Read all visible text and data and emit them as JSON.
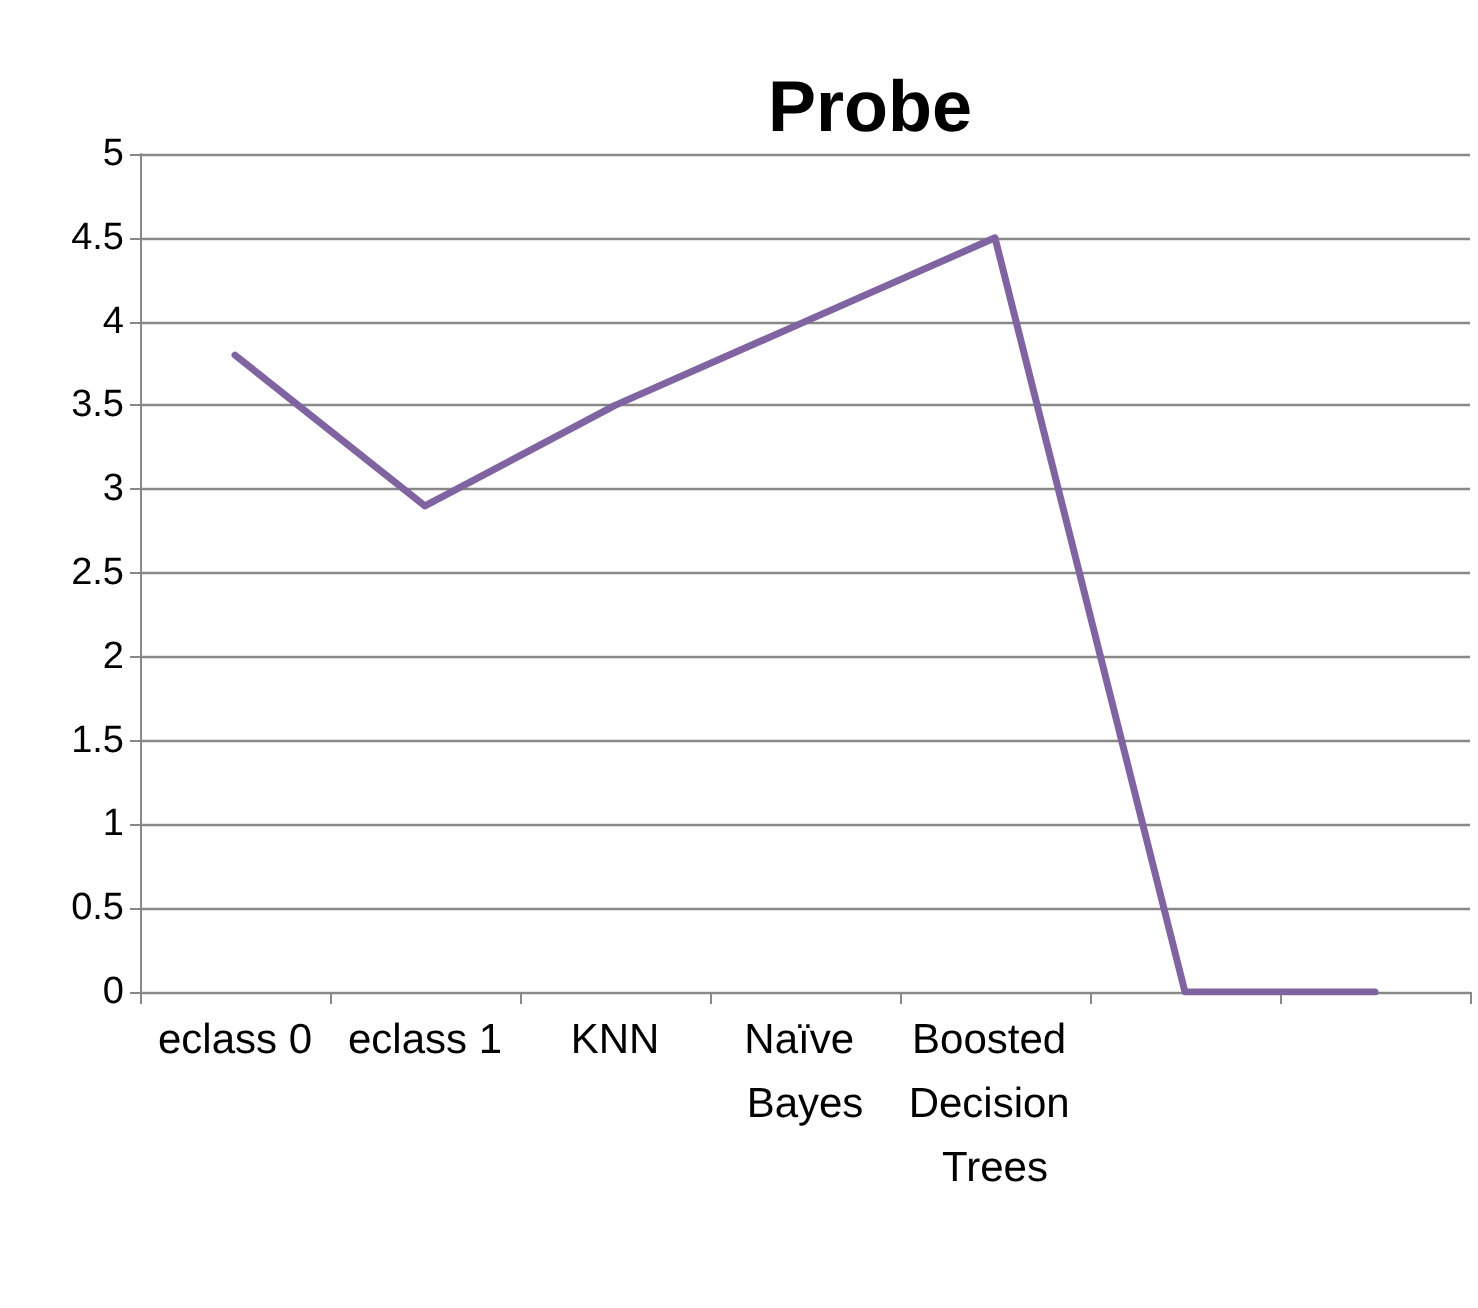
{
  "chart_data": {
    "type": "line",
    "title": "Probe",
    "categories": [
      "eclass 0",
      "eclass 1",
      "KNN",
      "Naïve Bayes",
      "Boosted Decision Trees",
      null,
      null
    ],
    "series": [
      {
        "color": "#8064a2",
        "values": [
          3.8,
          2.9,
          3.5,
          4.0,
          4.5,
          0,
          0
        ]
      }
    ],
    "ylim": [
      0,
      5
    ],
    "yticks": [
      0,
      0.5,
      1,
      1.5,
      2,
      2.5,
      3,
      3.5,
      4,
      4.5,
      5
    ],
    "grid": "y",
    "marker": "none",
    "line_style": "solid"
  }
}
